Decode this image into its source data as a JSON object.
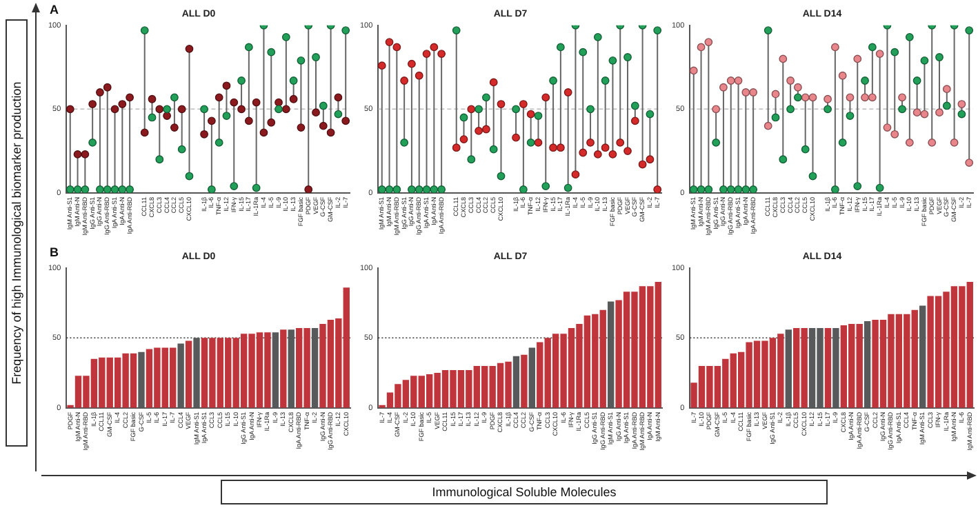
{
  "chart_data": [
    {
      "type": "scatter",
      "title": "ALL D0",
      "annotations": [
        "A"
      ],
      "ylabel": "Frequency of high Immunological biomarker production",
      "categories": [
        "IgM Anti-S1",
        "IgM Anti-N",
        "IgM Anti-RBD",
        "IgG Anti-S1",
        "IgG Anti-N",
        "IgG Anti-RBD",
        "IgA Anti-S1",
        "IgA Anti-N",
        "IgA Anti-RBD",
        null,
        "CCL11",
        "CXCL8",
        "CCL3",
        "CCL4",
        "CCL2",
        "CCL5",
        "CXCL10",
        null,
        "IL-1β",
        "IL-6",
        "TNF-α",
        "IL-12",
        "IFN-γ",
        "IL-15",
        "IL-17",
        "IL-1Ra",
        "IL-4",
        "IL-5",
        "IL-9",
        "IL-10",
        "IL-13",
        "FGF basic",
        "PDGF",
        "VEGF",
        "G-CSF",
        "GM-CSF",
        "IL-2",
        "IL-7"
      ],
      "marker": "circle",
      "ylim": [
        0,
        100
      ],
      "yticks": [
        0,
        50,
        100
      ],
      "grid": false,
      "legend": false,
      "ref_lines": [
        {
          "axis": "y",
          "value": 50,
          "color": "#bbbbbb",
          "line_style": "dashed"
        }
      ],
      "series": [
        {
          "color": "#22a05a",
          "values": [
            2,
            2,
            2,
            30,
            2,
            2,
            2,
            2,
            2,
            null,
            97,
            45,
            20,
            50,
            57,
            26,
            10,
            null,
            50,
            2,
            30,
            46,
            4,
            67,
            87,
            3,
            100,
            84,
            50,
            93,
            67,
            79,
            100,
            81,
            52,
            100,
            47,
            97
          ]
        },
        {
          "color": "#8b1a1f",
          "values": [
            50,
            23,
            23,
            53,
            60,
            63,
            50,
            53,
            57,
            null,
            36,
            56,
            50,
            46,
            39,
            50,
            86,
            null,
            35,
            43,
            57,
            64,
            54,
            50,
            43,
            54,
            36,
            42,
            54,
            50,
            56,
            39,
            2,
            48,
            40,
            36,
            57,
            43
          ]
        }
      ]
    },
    {
      "type": "scatter",
      "title": "ALL D7",
      "categories": [
        "IgM Anti-S1",
        "IgM Anti-N",
        "IgM Anti-RBD",
        "IgG Anti-S1",
        "IgG Anti-N",
        "IgG Anti-RBD",
        "IgA Anti-S1",
        "IgA Anti-N",
        "IgA Anti-RBD",
        null,
        "CCL11",
        "CXCL8",
        "CCL3",
        "CCL4",
        "CCL2",
        "CCL5",
        "CXCL10",
        null,
        "IL-1β",
        "IL-6",
        "TNF-α",
        "IL-12",
        "IFN-γ",
        "IL-15",
        "IL-17",
        "IL-1Ra",
        "IL-4",
        "IL-5",
        "IL-9",
        "IL-10",
        "IL-13",
        "FGF basic",
        "PDGF",
        "VEGF",
        "G-CSF",
        "GM-CSF",
        "IL-2",
        "IL-7"
      ],
      "marker": "circle",
      "ylim": [
        0,
        100
      ],
      "yticks": [
        0,
        50,
        100
      ],
      "grid": false,
      "legend": false,
      "ref_lines": [
        {
          "axis": "y",
          "value": 50,
          "color": "#bbbbbb",
          "line_style": "dashed"
        }
      ],
      "series": [
        {
          "color": "#22a05a",
          "values": [
            2,
            2,
            2,
            30,
            2,
            2,
            2,
            2,
            2,
            null,
            97,
            45,
            20,
            50,
            57,
            26,
            10,
            null,
            50,
            2,
            30,
            46,
            4,
            67,
            87,
            3,
            100,
            84,
            50,
            93,
            67,
            79,
            100,
            81,
            52,
            100,
            47,
            97
          ]
        },
        {
          "color": "#d42a2a",
          "values": [
            76,
            90,
            87,
            67,
            77,
            70,
            83,
            87,
            83,
            null,
            27,
            32,
            50,
            37,
            38,
            66,
            53,
            null,
            33,
            53,
            47,
            30,
            57,
            27,
            27,
            60,
            11,
            24,
            30,
            23,
            27,
            23,
            30,
            25,
            43,
            17,
            20,
            2
          ]
        }
      ]
    },
    {
      "type": "scatter",
      "title": "ALL D14",
      "categories": [
        "IgM Anti-S1",
        "IgM Anti-N",
        "IgM Anti-RBD",
        "IgG Anti-S1",
        "IgG Anti-N",
        "IgG Anti-RBD",
        "IgA Anti-S1",
        "IgA Anti-N",
        "IgA Anti-RBD",
        null,
        "CCL11",
        "CXCL8",
        "CCL3",
        "CCL4",
        "CCL2",
        "CCL5",
        "CXCL10",
        null,
        "IL-1β",
        "IL-6",
        "TNF-α",
        "IL-12",
        "IFN-γ",
        "IL-15",
        "IL-17",
        "IL-1Ra",
        "IL-4",
        "IL-5",
        "IL-9",
        "IL-10",
        "IL-13",
        "FGF basic",
        "PDGF",
        "VEGF",
        "G-CSF",
        "GM-CSF",
        "IL-2",
        "IL-7"
      ],
      "marker": "circle",
      "ylim": [
        0,
        100
      ],
      "yticks": [
        0,
        50,
        100
      ],
      "grid": false,
      "legend": false,
      "ref_lines": [
        {
          "axis": "y",
          "value": 50,
          "color": "#bbbbbb",
          "line_style": "dashed"
        }
      ],
      "series": [
        {
          "color": "#22a05a",
          "values": [
            2,
            2,
            2,
            30,
            2,
            2,
            2,
            2,
            2,
            null,
            97,
            45,
            20,
            50,
            57,
            26,
            10,
            null,
            50,
            2,
            30,
            46,
            4,
            67,
            87,
            3,
            100,
            84,
            50,
            93,
            67,
            79,
            100,
            81,
            52,
            100,
            47,
            97
          ]
        },
        {
          "color": "#e8868c",
          "values": [
            73,
            87,
            90,
            50,
            63,
            67,
            67,
            60,
            60,
            null,
            40,
            59,
            80,
            67,
            63,
            57,
            57,
            null,
            56,
            87,
            70,
            57,
            80,
            57,
            57,
            83,
            39,
            35,
            57,
            30,
            48,
            47,
            30,
            48,
            62,
            30,
            53,
            18
          ]
        }
      ]
    },
    {
      "type": "bar",
      "title": "ALL D0",
      "annotations": [
        "B"
      ],
      "categories": [
        "PDGF",
        "IgM Anti-N",
        "IgM Anti-RBD",
        "IL-1β",
        "CCL11",
        "GM-CSF",
        "IL-4",
        "CCL2",
        "FGF basic",
        "G-CSF",
        "IL-5",
        "IL-6",
        "IL-17",
        "IL-7",
        "CCL4",
        "VEGF",
        "IgM Anti-S1",
        "IgA Anti-S1",
        "CCL3",
        "CCL5",
        "IL-15",
        "IL-10",
        "IgG Anti-S1",
        "IgA Anti-N",
        "IFN-γ",
        "IL-1Ra",
        "IL-9",
        "IL-13",
        "CXCL8",
        "IgA Anti-RBD",
        "TNF-α",
        "IL-2",
        "IgG Anti-N",
        "IgG Anti-RBD",
        "IL-12",
        "CXCL10"
      ],
      "values": [
        2,
        23,
        23,
        35,
        36,
        36,
        36,
        39,
        39,
        40,
        42,
        43,
        43,
        43,
        46,
        48,
        50,
        50,
        50,
        50,
        50,
        50,
        53,
        53,
        54,
        54,
        54,
        56,
        56,
        57,
        57,
        57,
        60,
        63,
        64,
        86
      ],
      "colors": [
        "#c0353c",
        "#c0353c",
        "#c0353c",
        "#c0353c",
        "#c0353c",
        "#c0353c",
        "#c0353c",
        "#c0353c",
        "#c0353c",
        "#58595b",
        "#c0353c",
        "#c0353c",
        "#c0353c",
        "#c0353c",
        "#58595b",
        "#c0353c",
        "#58595b",
        "#c0353c",
        "#c0353c",
        "#c0353c",
        "#c0353c",
        "#c0353c",
        "#c0353c",
        "#c0353c",
        "#c0353c",
        "#c0353c",
        "#58595b",
        "#c0353c",
        "#58595b",
        "#c0353c",
        "#c0353c",
        "#58595b",
        "#c0353c",
        "#c0353c",
        "#c0353c",
        "#c0353c"
      ],
      "ylim": [
        0,
        100
      ],
      "yticks": [
        0,
        50,
        100
      ],
      "grid": false,
      "legend": false,
      "ref_lines": [
        {
          "axis": "y",
          "value": 50,
          "color": "#333333",
          "line_style": "dotted"
        }
      ]
    },
    {
      "type": "bar",
      "title": "ALL D7",
      "xlabel": "Immunological Soluble Molecules",
      "categories": [
        "IL-7",
        "IL-4",
        "GM-CSF",
        "IL-2",
        "IL-10",
        "FGF basic",
        "IL-5",
        "VEGF",
        "CCL11",
        "IL-15",
        "IL-17",
        "IL-13",
        "IL-12",
        "IL-9",
        "PDGF",
        "CXCL8",
        "IL-1β",
        "CCL4",
        "CCL2",
        "G-CSF",
        "TNF-α",
        "CCL3",
        "CXCL10",
        "IL-6",
        "IFN-γ",
        "IL-1Ra",
        "CCL5",
        "IgG Anti-S1",
        "IgG Anti-RBD",
        "IgM Anti-S1",
        "IgG Anti-N",
        "IgA Anti-S1",
        "IgA Anti-RBD",
        "IgM Anti-RBD",
        "IgA Anti-N",
        "IgM Anti-N"
      ],
      "values": [
        2,
        11,
        17,
        20,
        23,
        23,
        24,
        25,
        27,
        27,
        27,
        27,
        30,
        30,
        30,
        32,
        33,
        37,
        38,
        43,
        47,
        50,
        53,
        53,
        57,
        60,
        66,
        67,
        70,
        76,
        77,
        83,
        83,
        87,
        87,
        90
      ],
      "colors": [
        "#c0353c",
        "#c0353c",
        "#c0353c",
        "#c0353c",
        "#c0353c",
        "#c0353c",
        "#c0353c",
        "#c0353c",
        "#c0353c",
        "#c0353c",
        "#c0353c",
        "#c0353c",
        "#c0353c",
        "#c0353c",
        "#c0353c",
        "#c0353c",
        "#c0353c",
        "#58595b",
        "#c0353c",
        "#58595b",
        "#c0353c",
        "#c0353c",
        "#c0353c",
        "#c0353c",
        "#c0353c",
        "#c0353c",
        "#c0353c",
        "#c0353c",
        "#c0353c",
        "#58595b",
        "#c0353c",
        "#c0353c",
        "#c0353c",
        "#c0353c",
        "#c0353c",
        "#c0353c"
      ],
      "ylim": [
        0,
        100
      ],
      "yticks": [
        0,
        50,
        100
      ],
      "grid": false,
      "legend": false,
      "ref_lines": [
        {
          "axis": "y",
          "value": 50,
          "color": "#333333",
          "line_style": "dotted"
        }
      ]
    },
    {
      "type": "bar",
      "title": "ALL D14",
      "categories": [
        "IL-7",
        "IL-10",
        "PDGF",
        "GM-CSF",
        "IL-5",
        "IL-4",
        "CCL11",
        "FGF basic",
        "IL-13",
        "VEGF",
        "IgG Anti-S1",
        "IL-2",
        "IL-1β",
        "CCL5",
        "CXCL10",
        "IL-12",
        "IL-15",
        "IL-17",
        "IL-9",
        "CXCL8",
        "IgA Anti-N",
        "IgA Anti-RBD",
        "G-CSF",
        "CCL2",
        "IgG Anti-N",
        "IgG Anti-RBD",
        "IgA Anti-S1",
        "CCL4",
        "TNF-α",
        "IgM Anti-S1",
        "CCL3",
        "IFN-γ",
        "IL-1Ra",
        "IgM Anti-N",
        "IL-6",
        "IgM Anti-RBD"
      ],
      "values": [
        18,
        30,
        30,
        30,
        35,
        39,
        40,
        47,
        48,
        48,
        50,
        53,
        56,
        57,
        57,
        57,
        57,
        57,
        57,
        59,
        60,
        60,
        62,
        63,
        63,
        67,
        67,
        67,
        70,
        73,
        80,
        80,
        83,
        87,
        87,
        90
      ],
      "colors": [
        "#c0353c",
        "#c0353c",
        "#c0353c",
        "#c0353c",
        "#c0353c",
        "#c0353c",
        "#c0353c",
        "#c0353c",
        "#c0353c",
        "#c0353c",
        "#c0353c",
        "#c0353c",
        "#58595b",
        "#c0353c",
        "#c0353c",
        "#58595b",
        "#58595b",
        "#c0353c",
        "#58595b",
        "#c0353c",
        "#c0353c",
        "#c0353c",
        "#58595b",
        "#c0353c",
        "#c0353c",
        "#c0353c",
        "#c0353c",
        "#c0353c",
        "#c0353c",
        "#58595b",
        "#c0353c",
        "#c0353c",
        "#c0353c",
        "#c0353c",
        "#c0353c",
        "#c0353c"
      ],
      "ylim": [
        0,
        100
      ],
      "yticks": [
        0,
        50,
        100
      ],
      "grid": false,
      "legend": false,
      "ref_lines": [
        {
          "axis": "y",
          "value": 50,
          "color": "#333333",
          "line_style": "dotted"
        }
      ]
    }
  ]
}
